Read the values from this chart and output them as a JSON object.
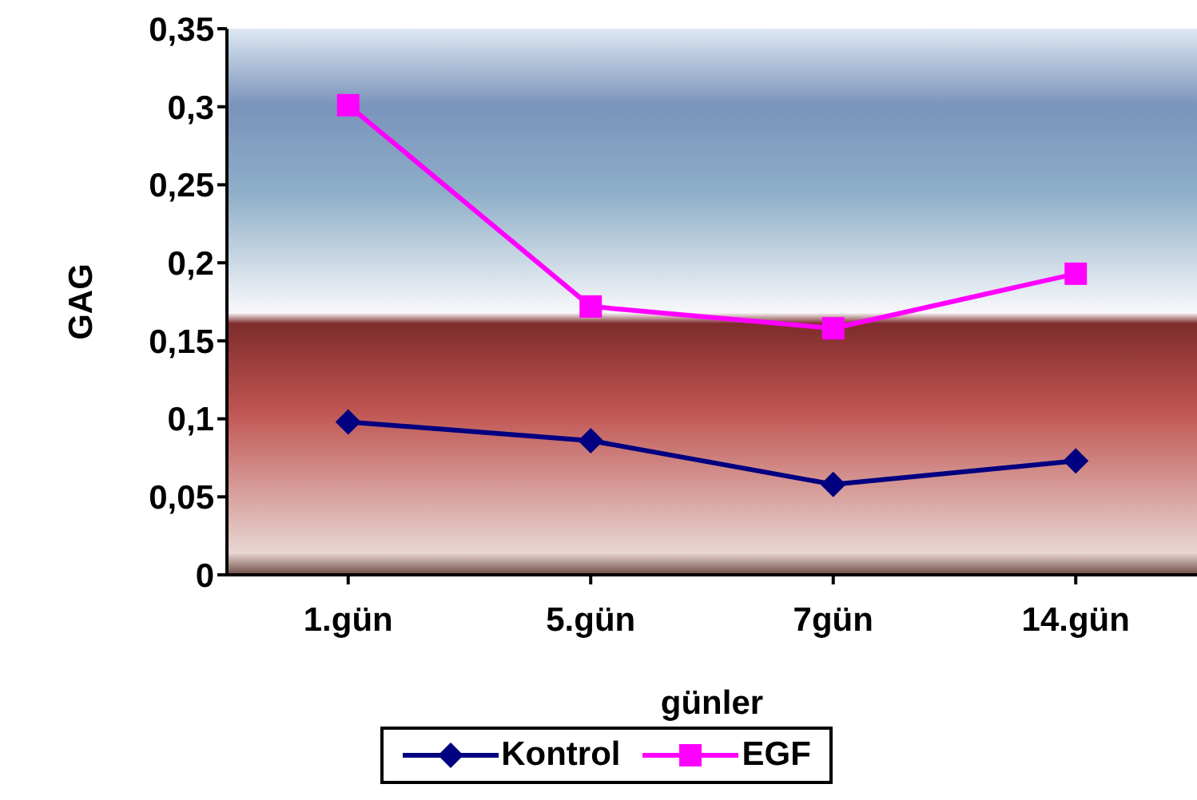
{
  "chart_data": {
    "type": "line",
    "xlabel": "günler",
    "ylabel": "GAG",
    "categories": [
      "1.gün",
      "5.gün",
      "7gün",
      "14.gün"
    ],
    "series": [
      {
        "name": "Kontrol",
        "color": "#000080",
        "marker": "diamond",
        "values": [
          0.098,
          0.086,
          0.058,
          0.073
        ]
      },
      {
        "name": "EGF",
        "color": "#ff00ff",
        "marker": "square",
        "values": [
          0.301,
          0.172,
          0.158,
          0.193
        ]
      }
    ],
    "ylim": [
      0,
      0.35
    ],
    "yticks": [
      {
        "value": 0,
        "label": "0"
      },
      {
        "value": 0.05,
        "label": "0,05"
      },
      {
        "value": 0.1,
        "label": "0,1"
      },
      {
        "value": 0.15,
        "label": "0,15"
      },
      {
        "value": 0.2,
        "label": "0,2"
      },
      {
        "value": 0.25,
        "label": "0,25"
      },
      {
        "value": 0.3,
        "label": "0,3"
      },
      {
        "value": 0.35,
        "label": "0,35"
      }
    ],
    "legend": "bottom"
  }
}
